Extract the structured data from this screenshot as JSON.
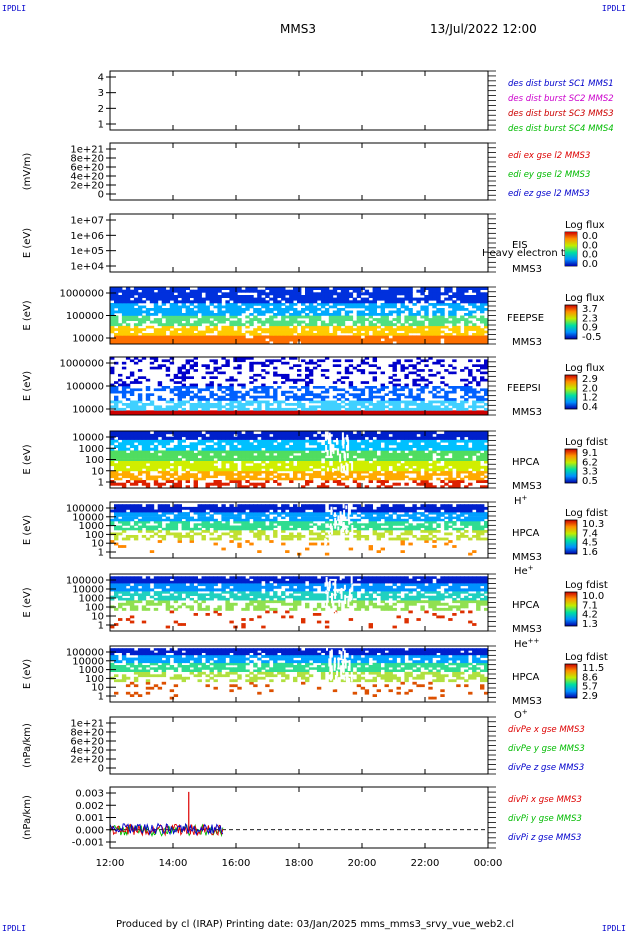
{
  "header": {
    "spacecraft": "MMS3",
    "datetime": "13/Jul/2022 12:00",
    "corner_label": "IPDLI"
  },
  "footer": {
    "text": "Produced by cl (IRAP)   Printing date: 03/Jan/2025   mms_mms3_srvy_vue_web2.cl"
  },
  "colors": {
    "mms1": "#0000cc",
    "mms2": "#cc00cc",
    "mms3": "#cc0000",
    "mms4": "#00bb00",
    "x": "#dd0000",
    "y": "#00bb00",
    "z": "#0000cc"
  },
  "chart_data": [
    {
      "type": "line",
      "id": "burst",
      "ylabel": "",
      "yticks": [
        "4",
        "3",
        "2",
        "1"
      ],
      "ylim": [
        0.5,
        4.5
      ],
      "legend": [
        {
          "label": "des dist burst SC1 MMS1",
          "color": "#0000cc"
        },
        {
          "label": "des dist burst SC2 MMS2",
          "color": "#cc00cc"
        },
        {
          "label": "des dist burst SC3 MMS3",
          "color": "#cc0000"
        },
        {
          "label": "des dist burst SC4 MMS4",
          "color": "#00bb00"
        }
      ]
    },
    {
      "type": "line",
      "id": "edi",
      "ylabel": "(mV/m)",
      "yticks": [
        "1e+21",
        "8e+20",
        "6e+20",
        "4e+20",
        "2e+20",
        "0"
      ],
      "ylim": [
        0,
        1e+21
      ],
      "zero_line": true,
      "legend": [
        {
          "label": "edi ex gse l2 MMS3",
          "color": "#dd0000"
        },
        {
          "label": "edi ey gse l2 MMS3",
          "color": "#00bb00"
        },
        {
          "label": "edi ez gse l2 MMS3",
          "color": "#0000cc"
        }
      ]
    },
    {
      "type": "heatmap",
      "id": "eis",
      "ylabel": "E (eV)",
      "yticks": [
        "1e+07",
        "1e+06",
        "1e+05",
        "1e+04"
      ],
      "ylim": [
        10000,
        10000000
      ],
      "instrument": "EIS",
      "sc": "MMS3",
      "species": "",
      "overlay_label": "Heavy electron to",
      "cbar_title": "Log flux",
      "cbar_ticks": [
        "0.0",
        "0.0",
        "0.0",
        "0.0"
      ],
      "empty": true
    },
    {
      "type": "heatmap",
      "id": "feepse",
      "ylabel": "E (eV)",
      "yticks": [
        "1000000",
        "100000",
        "10000"
      ],
      "ylim": [
        10000,
        1000000
      ],
      "instrument": "FEEPSE",
      "sc": "MMS3",
      "species": "",
      "cbar_title": "Log flux",
      "cbar_ticks": [
        "3.7",
        "2.3",
        "0.9",
        "-0.5"
      ],
      "data_end_hour": 24,
      "bands": [
        {
          "from": 0.0,
          "to": 0.15,
          "color": "#ff7000",
          "noise": 0.05
        },
        {
          "from": 0.15,
          "to": 0.32,
          "color": "#ffcc00",
          "noise": 0.25
        },
        {
          "from": 0.32,
          "to": 0.5,
          "color": "#50e080",
          "noise": 0.3
        },
        {
          "from": 0.5,
          "to": 0.72,
          "color": "#00aaff",
          "noise": 0.3
        },
        {
          "from": 0.72,
          "to": 1.0,
          "color": "#0030dd",
          "noise": 0.2
        }
      ]
    },
    {
      "type": "heatmap",
      "id": "feepsi",
      "ylabel": "E (eV)",
      "yticks": [
        "1000000",
        "100000",
        "10000"
      ],
      "ylim": [
        10000,
        1000000
      ],
      "instrument": "FEEPSI",
      "sc": "MMS3",
      "species": "",
      "cbar_title": "Log flux",
      "cbar_ticks": [
        "2.9",
        "2.0",
        "1.2",
        "0.4"
      ],
      "data_end_hour": 24,
      "bands": [
        {
          "from": 0.0,
          "to": 0.08,
          "color": "#cc0000",
          "noise": 0.0
        },
        {
          "from": 0.08,
          "to": 0.25,
          "color": "#40d0ff",
          "noise": 0.3
        },
        {
          "from": 0.25,
          "to": 0.5,
          "color": "#0060ff",
          "noise": 0.45
        },
        {
          "from": 0.5,
          "to": 1.0,
          "color": "#0000cc",
          "noise": 0.7
        }
      ]
    },
    {
      "type": "heatmap",
      "id": "hpca-h",
      "ylabel": "E (eV)",
      "yticks": [
        "10000",
        "1000",
        "100",
        "10",
        "1"
      ],
      "ylim": [
        1,
        40000
      ],
      "instrument": "HPCA",
      "sc": "MMS3",
      "species": "H+",
      "cbar_title": "Log fdist",
      "cbar_ticks": [
        "9.1",
        "6.2",
        "3.3",
        "0.5"
      ],
      "data_end_hour": 24,
      "bands": [
        {
          "from": 0.0,
          "to": 0.14,
          "color": "#dd2000",
          "noise": 0.6
        },
        {
          "from": 0.14,
          "to": 0.3,
          "color": "#ffaa00",
          "noise": 0.3
        },
        {
          "from": 0.3,
          "to": 0.48,
          "color": "#d0ee00",
          "noise": 0.2
        },
        {
          "from": 0.48,
          "to": 0.66,
          "color": "#50dd60",
          "noise": 0.15
        },
        {
          "from": 0.66,
          "to": 0.85,
          "color": "#00c0ff",
          "noise": 0.2
        },
        {
          "from": 0.85,
          "to": 1.0,
          "color": "#0020cc",
          "noise": 0.1
        }
      ]
    },
    {
      "type": "heatmap",
      "id": "hpca-he",
      "ylabel": "E (eV)",
      "yticks": [
        "100000",
        "10000",
        "1000",
        "100",
        "10",
        "1"
      ],
      "ylim": [
        1,
        100000
      ],
      "instrument": "HPCA",
      "sc": "MMS3",
      "species": "He+",
      "cbar_title": "Log fdist",
      "cbar_ticks": [
        "10.3",
        "7.4",
        "4.5",
        "1.6"
      ],
      "data_end_hour": 24,
      "bands": [
        {
          "from": 0.05,
          "to": 0.32,
          "color": "#ff8800",
          "noise": 0.92
        },
        {
          "from": 0.32,
          "to": 0.5,
          "color": "#c0e030",
          "noise": 0.55
        },
        {
          "from": 0.5,
          "to": 0.66,
          "color": "#30dd90",
          "noise": 0.3
        },
        {
          "from": 0.66,
          "to": 0.82,
          "color": "#00a0ff",
          "noise": 0.2
        },
        {
          "from": 0.82,
          "to": 0.96,
          "color": "#0020cc",
          "noise": 0.15
        }
      ]
    },
    {
      "type": "heatmap",
      "id": "hpca-hepp",
      "ylabel": "E (eV)",
      "yticks": [
        "100000",
        "10000",
        "1000",
        "100",
        "10",
        "1"
      ],
      "ylim": [
        1,
        100000
      ],
      "instrument": "HPCA",
      "sc": "MMS3",
      "species": "He++",
      "cbar_title": "Log fdist",
      "cbar_ticks": [
        "10.0",
        "7.1",
        "4.2",
        "1.3"
      ],
      "data_end_hour": 24,
      "bands": [
        {
          "from": 0.05,
          "to": 0.36,
          "color": "#dd3000",
          "noise": 0.93
        },
        {
          "from": 0.36,
          "to": 0.54,
          "color": "#90e050",
          "noise": 0.5
        },
        {
          "from": 0.54,
          "to": 0.7,
          "color": "#20d0c0",
          "noise": 0.3
        },
        {
          "from": 0.7,
          "to": 0.84,
          "color": "#0090ff",
          "noise": 0.2
        },
        {
          "from": 0.84,
          "to": 0.96,
          "color": "#0020cc",
          "noise": 0.1
        }
      ]
    },
    {
      "type": "heatmap",
      "id": "hpca-o",
      "ylabel": "E (eV)",
      "yticks": [
        "100000",
        "10000",
        "1000",
        "100",
        "10",
        "1"
      ],
      "ylim": [
        1,
        100000
      ],
      "instrument": "HPCA",
      "sc": "MMS3",
      "species": "O+",
      "cbar_title": "Log fdist",
      "cbar_ticks": [
        "11.5",
        "8.6",
        "5.7",
        "2.9"
      ],
      "data_end_hour": 24,
      "bands": [
        {
          "from": 0.05,
          "to": 0.36,
          "color": "#dd5000",
          "noise": 0.9
        },
        {
          "from": 0.36,
          "to": 0.54,
          "color": "#b0e040",
          "noise": 0.5
        },
        {
          "from": 0.54,
          "to": 0.7,
          "color": "#30dd90",
          "noise": 0.3
        },
        {
          "from": 0.7,
          "to": 0.84,
          "color": "#00a0ff",
          "noise": 0.2
        },
        {
          "from": 0.84,
          "to": 0.96,
          "color": "#0020cc",
          "noise": 0.1
        }
      ]
    },
    {
      "type": "line",
      "id": "divpe",
      "ylabel": "(nPa/km)",
      "yticks": [
        "1e+21",
        "8e+20",
        "6e+20",
        "4e+20",
        "2e+20",
        "0"
      ],
      "ylim": [
        0,
        1e+21
      ],
      "zero_line": true,
      "legend": [
        {
          "label": "divPe x gse MMS3",
          "color": "#dd0000"
        },
        {
          "label": "divPe y gse MMS3",
          "color": "#00bb00"
        },
        {
          "label": "divPe z gse MMS3",
          "color": "#0000cc"
        }
      ]
    },
    {
      "type": "line",
      "id": "divpi",
      "ylabel": "(nPa/km)",
      "yticks": [
        "0.003",
        "0.002",
        "0.001",
        "0.000",
        "-0.001"
      ],
      "ylim": [
        -0.0015,
        0.0035
      ],
      "zero_line": true,
      "data_end_hour": 15.6,
      "spike": {
        "x": 14.5,
        "y": 0.0031
      },
      "legend": [
        {
          "label": "divPi x gse MMS3",
          "color": "#dd0000"
        },
        {
          "label": "divPi y gse MMS3",
          "color": "#00bb00"
        },
        {
          "label": "divPi z gse MMS3",
          "color": "#0000cc"
        }
      ]
    }
  ],
  "xaxis": {
    "start_hour": 12,
    "end_hour": 24,
    "ticks": [
      {
        "h": 12,
        "label": "12:00"
      },
      {
        "h": 14,
        "label": "14:00"
      },
      {
        "h": 16,
        "label": "16:00"
      },
      {
        "h": 18,
        "label": "18:00"
      },
      {
        "h": 20,
        "label": "20:00"
      },
      {
        "h": 22,
        "label": "22:00"
      },
      {
        "h": 24,
        "label": "00:00"
      }
    ]
  }
}
